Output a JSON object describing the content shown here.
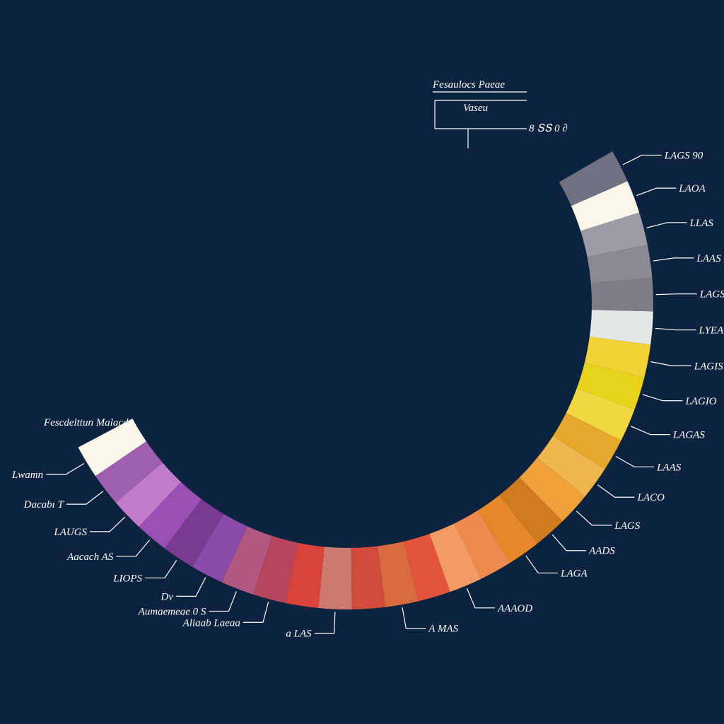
{
  "chart_data": {
    "type": "pie",
    "variant": "partial-donut-arc",
    "title": "",
    "top_annotation": "Fesaulocs Paeae",
    "top_small_labels": [
      "Vaseu",
      "8 ՏՏ 0 ∂"
    ],
    "left_annotation": "Fescdelttun Malacd",
    "slices": [
      {
        "label": "Lwamn",
        "value": 1.0,
        "color": "#fbf7ea"
      },
      {
        "label": "Dacabı T",
        "value": 1.0,
        "color": "#a05fb0"
      },
      {
        "label": "LAUGS",
        "value": 1.0,
        "color": "#c07cc9"
      },
      {
        "label": "Aacach AS",
        "value": 1.0,
        "color": "#9b4fb5"
      },
      {
        "label": "LIOPS",
        "value": 1.0,
        "color": "#7a3a8f"
      },
      {
        "label": "Dv",
        "value": 1.0,
        "color": "#8a4aa8"
      },
      {
        "label": "Aumaemeae 0 S",
        "value": 1.0,
        "color": "#b2577f"
      },
      {
        "label": "Aliaab Laeaa",
        "value": 1.0,
        "color": "#b5465e"
      },
      {
        "label": "",
        "value": 1.0,
        "color": "#d9433a"
      },
      {
        "label": "a LAS",
        "value": 1.0,
        "color": "#cc7a70"
      },
      {
        "label": "",
        "value": 1.0,
        "color": "#cf4b3a"
      },
      {
        "label": "A MAS",
        "value": 1.0,
        "color": "#d86a40"
      },
      {
        "label": "",
        "value": 1.0,
        "color": "#e2553a"
      },
      {
        "label": "AAAOD",
        "value": 1.0,
        "color": "#f29c63"
      },
      {
        "label": "",
        "value": 1.0,
        "color": "#ee8a4e"
      },
      {
        "label": "LAGA",
        "value": 1.0,
        "color": "#e8862a"
      },
      {
        "label": "AADS",
        "value": 1.0,
        "color": "#cf7a1e"
      },
      {
        "label": "LAGS",
        "value": 1.0,
        "color": "#f0a23a"
      },
      {
        "label": "LACO",
        "value": 1.0,
        "color": "#efb64e"
      },
      {
        "label": "LAAS",
        "value": 1.0,
        "color": "#e6a82a"
      },
      {
        "label": "LAGAS",
        "value": 1.0,
        "color": "#f2d83e"
      },
      {
        "label": "LAGIO",
        "value": 1.0,
        "color": "#e8d21a"
      },
      {
        "label": "LAGIS",
        "value": 1.0,
        "color": "#f0d234"
      },
      {
        "label": "LYEA",
        "value": 1.0,
        "color": "#e4e9e8"
      },
      {
        "label": "LAGS",
        "value": 1.0,
        "color": "#7e7d86"
      },
      {
        "label": "LAAS",
        "value": 1.0,
        "color": "#8b8a93"
      },
      {
        "label": "LLAS",
        "value": 1.0,
        "color": "#9d9ba3"
      },
      {
        "label": "LAOA",
        "value": 1.0,
        "color": "#fbf8ea"
      },
      {
        "label": "LAGS 90",
        "value": 1.0,
        "color": "#6f7183"
      }
    ],
    "legend": "none",
    "grid": false
  }
}
